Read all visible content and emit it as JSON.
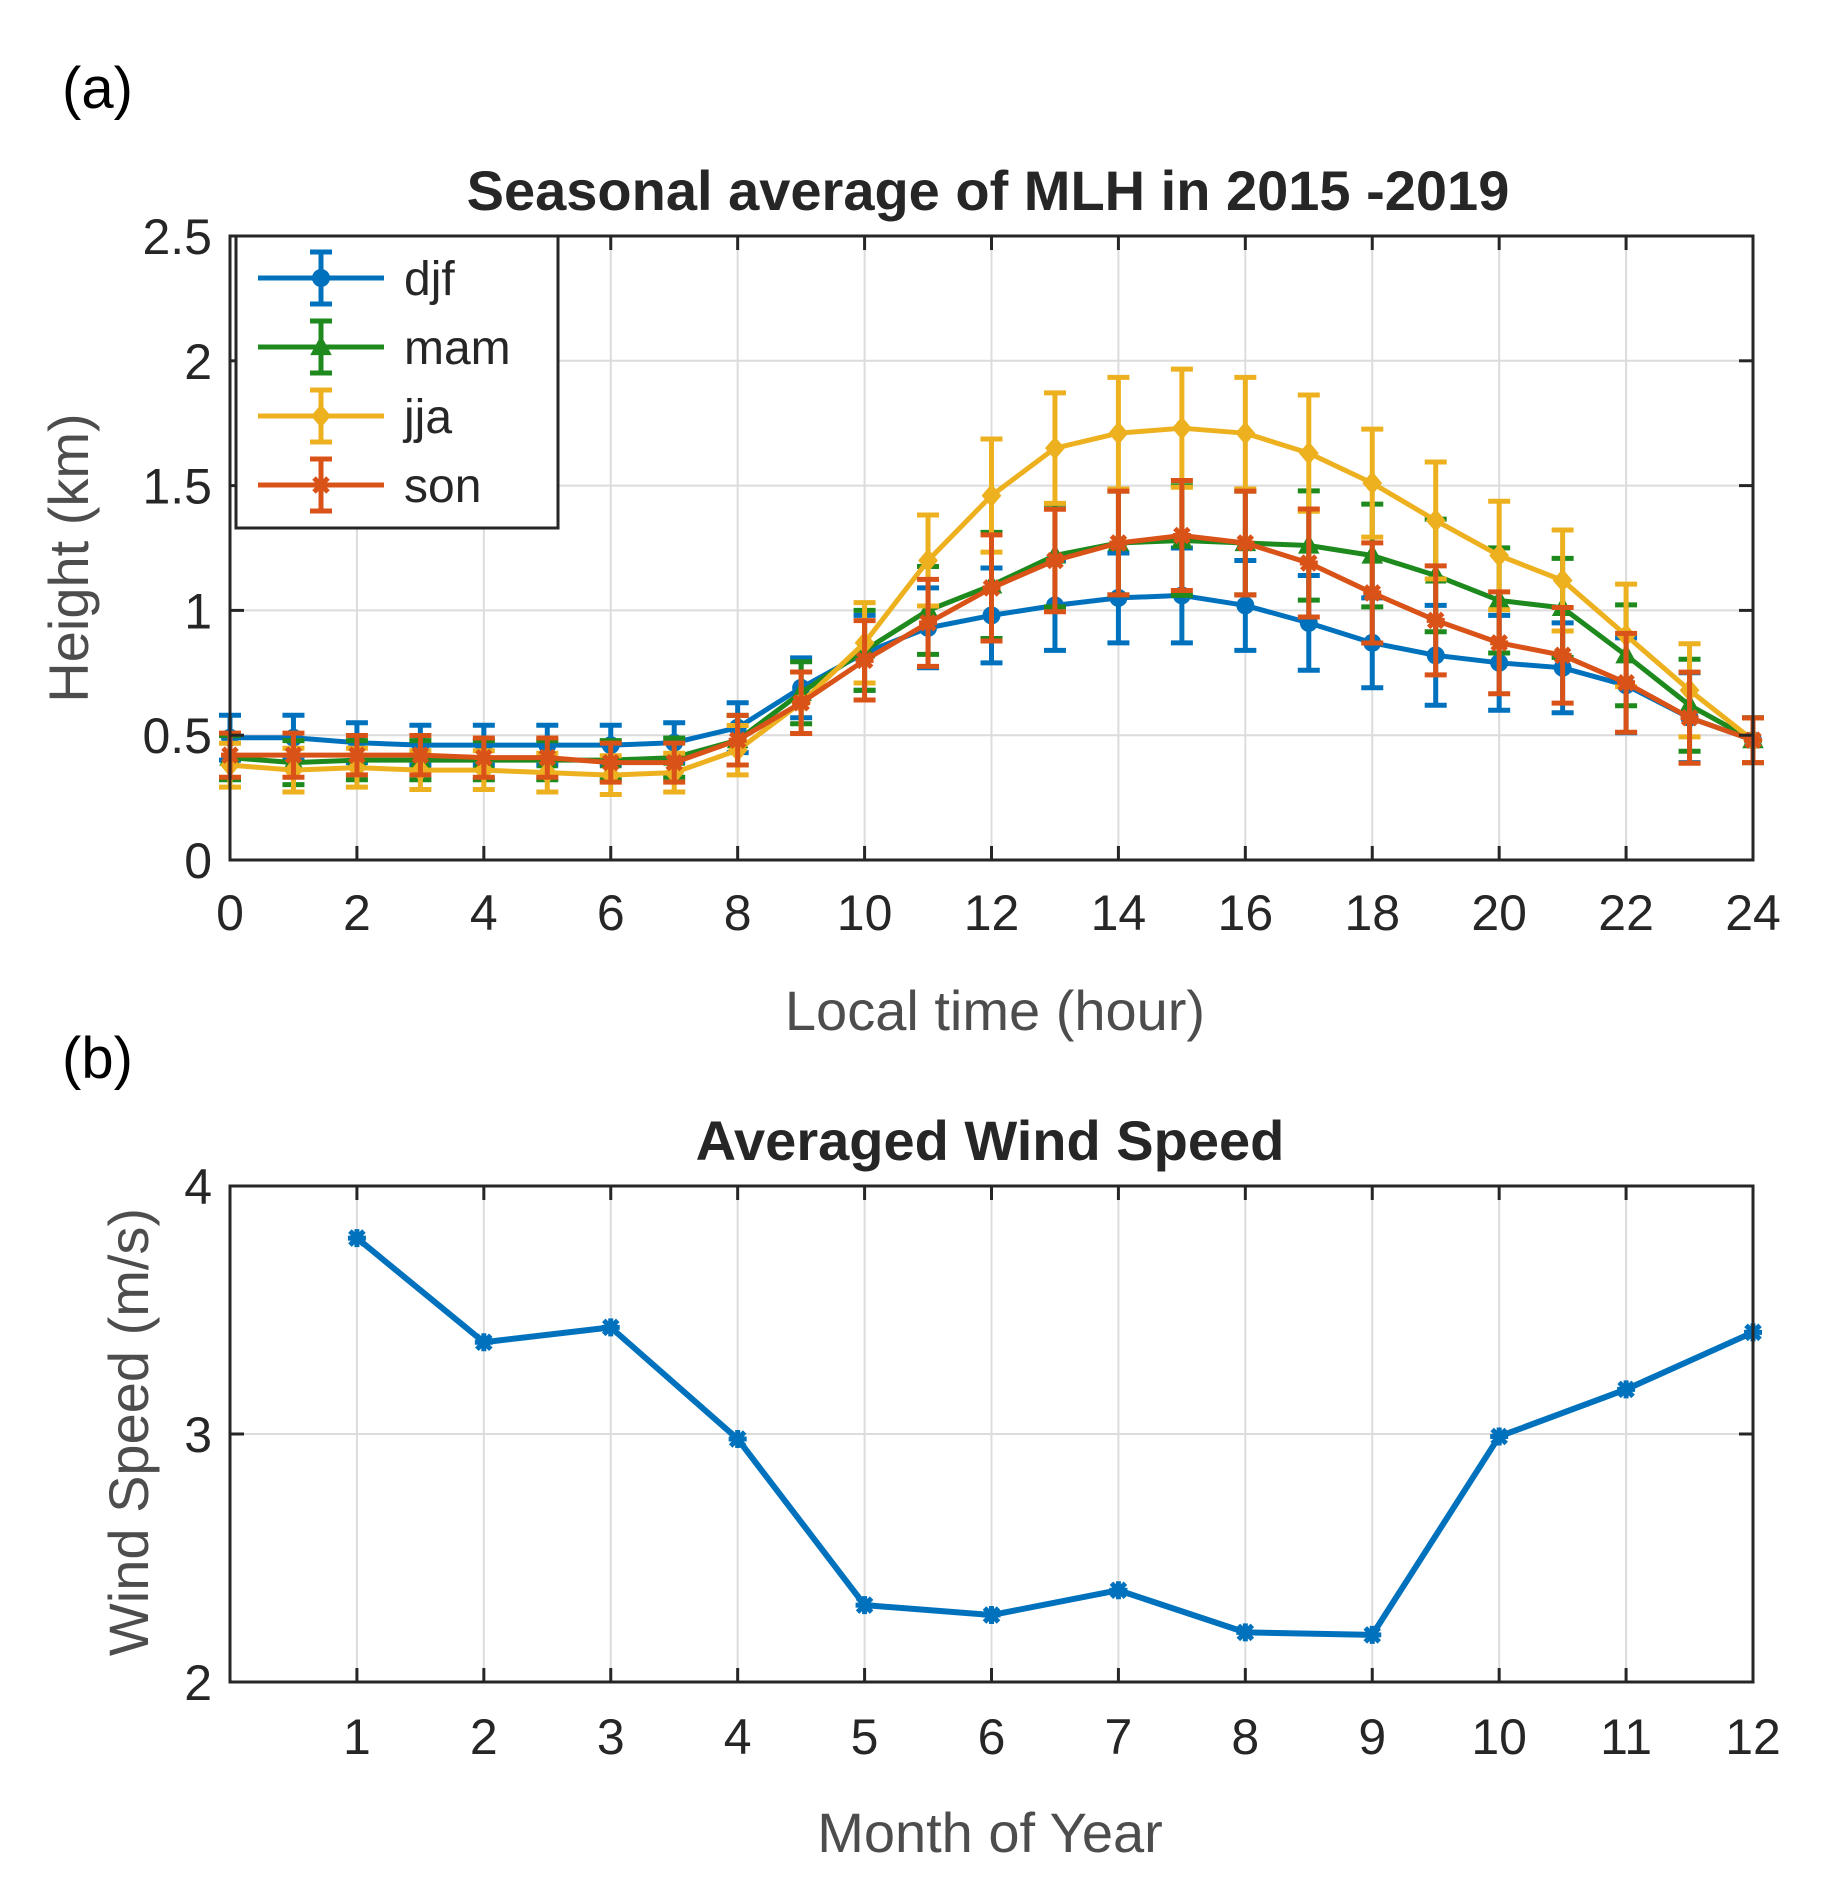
{
  "chart_data": [
    {
      "type": "line",
      "panel_label": "(a)",
      "title": "Seasonal average of MLH in 2015 -2019",
      "xlabel": "Local time (hour)",
      "ylabel": "Height (km)",
      "xlim": [
        0,
        24
      ],
      "ylim": [
        0,
        2.5
      ],
      "xticks": [
        0,
        2,
        4,
        6,
        8,
        10,
        12,
        14,
        16,
        18,
        20,
        22,
        24
      ],
      "yticks": [
        0,
        0.5,
        1,
        1.5,
        2,
        2.5
      ],
      "ytick_labels": [
        "0",
        "0.5",
        "1",
        "1.5",
        "2",
        "2.5"
      ],
      "grid": true,
      "legend_position": "top-left",
      "error_bars": true,
      "x": [
        0,
        1,
        2,
        3,
        4,
        5,
        6,
        7,
        8,
        9,
        10,
        11,
        12,
        13,
        14,
        15,
        16,
        17,
        18,
        19,
        20,
        21,
        22,
        23,
        24
      ],
      "series": [
        {
          "name": "djf",
          "color": "#0072BD",
          "marker": "circle",
          "values": [
            0.49,
            0.49,
            0.47,
            0.46,
            0.46,
            0.46,
            0.46,
            0.47,
            0.53,
            0.69,
            0.83,
            0.93,
            0.98,
            1.02,
            1.05,
            1.06,
            1.02,
            0.95,
            0.87,
            0.82,
            0.79,
            0.77,
            0.7,
            0.57,
            0.48
          ],
          "errors": [
            0.09,
            0.09,
            0.08,
            0.08,
            0.08,
            0.08,
            0.08,
            0.08,
            0.1,
            0.12,
            0.15,
            0.16,
            0.19,
            0.18,
            0.18,
            0.19,
            0.18,
            0.19,
            0.18,
            0.2,
            0.19,
            0.18,
            0.19,
            0.18,
            0.09
          ]
        },
        {
          "name": "mam",
          "color": "#1E8A1E",
          "marker": "triangle",
          "values": [
            0.41,
            0.39,
            0.4,
            0.4,
            0.4,
            0.4,
            0.4,
            0.41,
            0.48,
            0.67,
            0.84,
            1.0,
            1.1,
            1.22,
            1.27,
            1.28,
            1.27,
            1.26,
            1.22,
            1.14,
            1.04,
            1.01,
            0.82,
            0.62,
            0.48
          ]
        },
        {
          "name": "jja",
          "color": "#EDB120",
          "marker": "diamond",
          "values": [
            0.38,
            0.36,
            0.37,
            0.36,
            0.36,
            0.35,
            0.34,
            0.35,
            0.44,
            0.63,
            0.87,
            1.2,
            1.46,
            1.65,
            1.71,
            1.73,
            1.71,
            1.63,
            1.51,
            1.36,
            1.22,
            1.12,
            0.9,
            0.68,
            0.48
          ]
        },
        {
          "name": "son",
          "color": "#D95319",
          "marker": "star",
          "values": [
            0.42,
            0.42,
            0.42,
            0.42,
            0.41,
            0.41,
            0.39,
            0.39,
            0.48,
            0.63,
            0.8,
            0.95,
            1.09,
            1.2,
            1.27,
            1.3,
            1.27,
            1.19,
            1.07,
            0.96,
            0.87,
            0.82,
            0.71,
            0.57,
            0.48
          ]
        }
      ]
    },
    {
      "type": "line",
      "panel_label": "(b)",
      "title": "Averaged Wind Speed",
      "xlabel": "Month of Year",
      "ylabel": "Wind Speed (m/s)",
      "xlim": [
        0,
        12
      ],
      "ylim": [
        2,
        4
      ],
      "xticks": [
        1,
        2,
        3,
        4,
        5,
        6,
        7,
        8,
        9,
        10,
        11,
        12
      ],
      "yticks": [
        2,
        3,
        4
      ],
      "grid": true,
      "series": [
        {
          "name": "Wind Speed",
          "color": "#0072BD",
          "marker": "star",
          "x": [
            1,
            2,
            3,
            4,
            5,
            6,
            7,
            8,
            9,
            10,
            11,
            12
          ],
          "values": [
            3.79,
            3.37,
            3.43,
            2.98,
            2.31,
            2.27,
            2.37,
            2.2,
            2.19,
            2.99,
            3.18,
            3.41
          ]
        }
      ]
    }
  ]
}
